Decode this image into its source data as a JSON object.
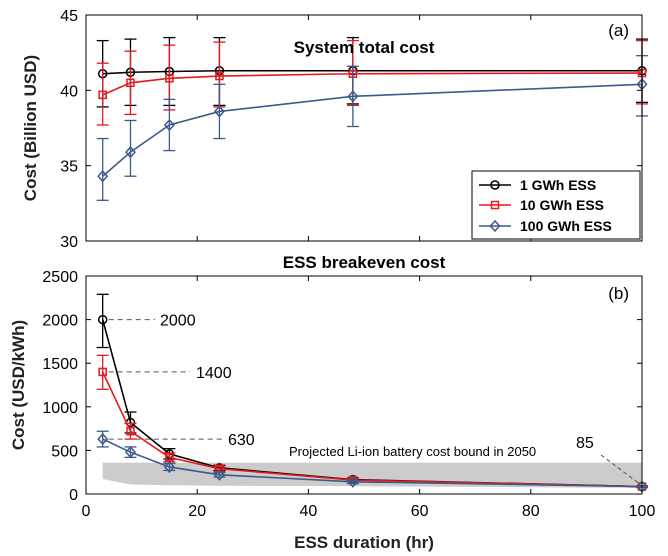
{
  "chart_data": [
    {
      "panel": "(a)",
      "type": "line",
      "title": "System total cost",
      "xlabel": "",
      "ylabel": "Cost (Billion USD)",
      "xlim": [
        0,
        100
      ],
      "ylim": [
        30,
        45
      ],
      "yticks": [
        30,
        35,
        40,
        45
      ],
      "x": [
        3,
        8,
        15,
        24,
        48,
        100
      ],
      "series": [
        {
          "name": "1 GWh ESS",
          "color": "#000000",
          "marker": "circle",
          "values": [
            41.1,
            41.2,
            41.25,
            41.3,
            41.3,
            41.3
          ],
          "err_low": [
            38.9,
            39.0,
            39.0,
            39.0,
            39.1,
            39.2
          ],
          "err_high": [
            43.3,
            43.4,
            43.5,
            43.5,
            43.5,
            43.4
          ]
        },
        {
          "name": "10 GWh ESS",
          "color": "#e41a1c",
          "marker": "square",
          "values": [
            39.7,
            40.5,
            40.8,
            40.95,
            41.1,
            41.15
          ],
          "err_low": [
            37.7,
            38.4,
            38.7,
            38.9,
            39.0,
            39.1
          ],
          "err_high": [
            41.8,
            42.6,
            43.0,
            43.2,
            43.3,
            43.3
          ]
        },
        {
          "name": "100 GWh ESS",
          "color": "#3c5a8c",
          "marker": "diamond",
          "values": [
            34.3,
            35.9,
            37.7,
            38.6,
            39.6,
            40.4
          ],
          "err_low": [
            32.7,
            34.3,
            36.0,
            36.8,
            37.6,
            38.3
          ],
          "err_high": [
            36.8,
            38.0,
            39.4,
            40.4,
            41.6,
            42.3
          ]
        }
      ],
      "legend_position": "bottom-right"
    },
    {
      "panel": "(b)",
      "type": "line",
      "title": "ESS breakeven cost",
      "xlabel": "ESS duration (hr)",
      "ylabel": "Cost (USD/kWh)",
      "xlim": [
        0,
        100
      ],
      "ylim": [
        0,
        2500
      ],
      "xticks": [
        0,
        20,
        40,
        60,
        80,
        100
      ],
      "yticks": [
        0,
        500,
        1000,
        1500,
        2000,
        2500
      ],
      "x": [
        3,
        8,
        15,
        24,
        48,
        100
      ],
      "series": [
        {
          "name": "1 GWh ESS",
          "color": "#000000",
          "marker": "circle",
          "values": [
            2000,
            820,
            460,
            300,
            165,
            85
          ],
          "err_low": [
            1680,
            700,
            400,
            270,
            145,
            75
          ],
          "err_high": [
            2290,
            940,
            520,
            330,
            185,
            95
          ]
        },
        {
          "name": "10 GWh ESS",
          "color": "#e41a1c",
          "marker": "square",
          "values": [
            1400,
            720,
            420,
            290,
            160,
            85
          ],
          "err_low": [
            1200,
            630,
            370,
            260,
            140,
            75
          ],
          "err_high": [
            1590,
            810,
            470,
            320,
            180,
            95
          ]
        },
        {
          "name": "100 GWh ESS",
          "color": "#3c5a8c",
          "marker": "diamond",
          "values": [
            630,
            480,
            310,
            220,
            140,
            85
          ],
          "err_low": [
            540,
            420,
            270,
            195,
            120,
            75
          ],
          "err_high": [
            720,
            540,
            350,
            245,
            160,
            95
          ]
        }
      ],
      "band": {
        "label": "Projected Li-ion battery cost bound in 2050",
        "x": [
          3,
          8,
          15,
          24,
          48,
          100
        ],
        "low": [
          170,
          110,
          100,
          95,
          90,
          70
        ],
        "high": [
          360,
          360,
          360,
          360,
          360,
          360
        ],
        "color": "#cccccc"
      },
      "annotations": [
        {
          "text": "2000",
          "x": 3,
          "y": 2000
        },
        {
          "text": "1400",
          "x": 3,
          "y": 1400
        },
        {
          "text": "630",
          "x": 3,
          "y": 630
        },
        {
          "text": "85",
          "x": 100,
          "y": 85
        }
      ]
    }
  ]
}
